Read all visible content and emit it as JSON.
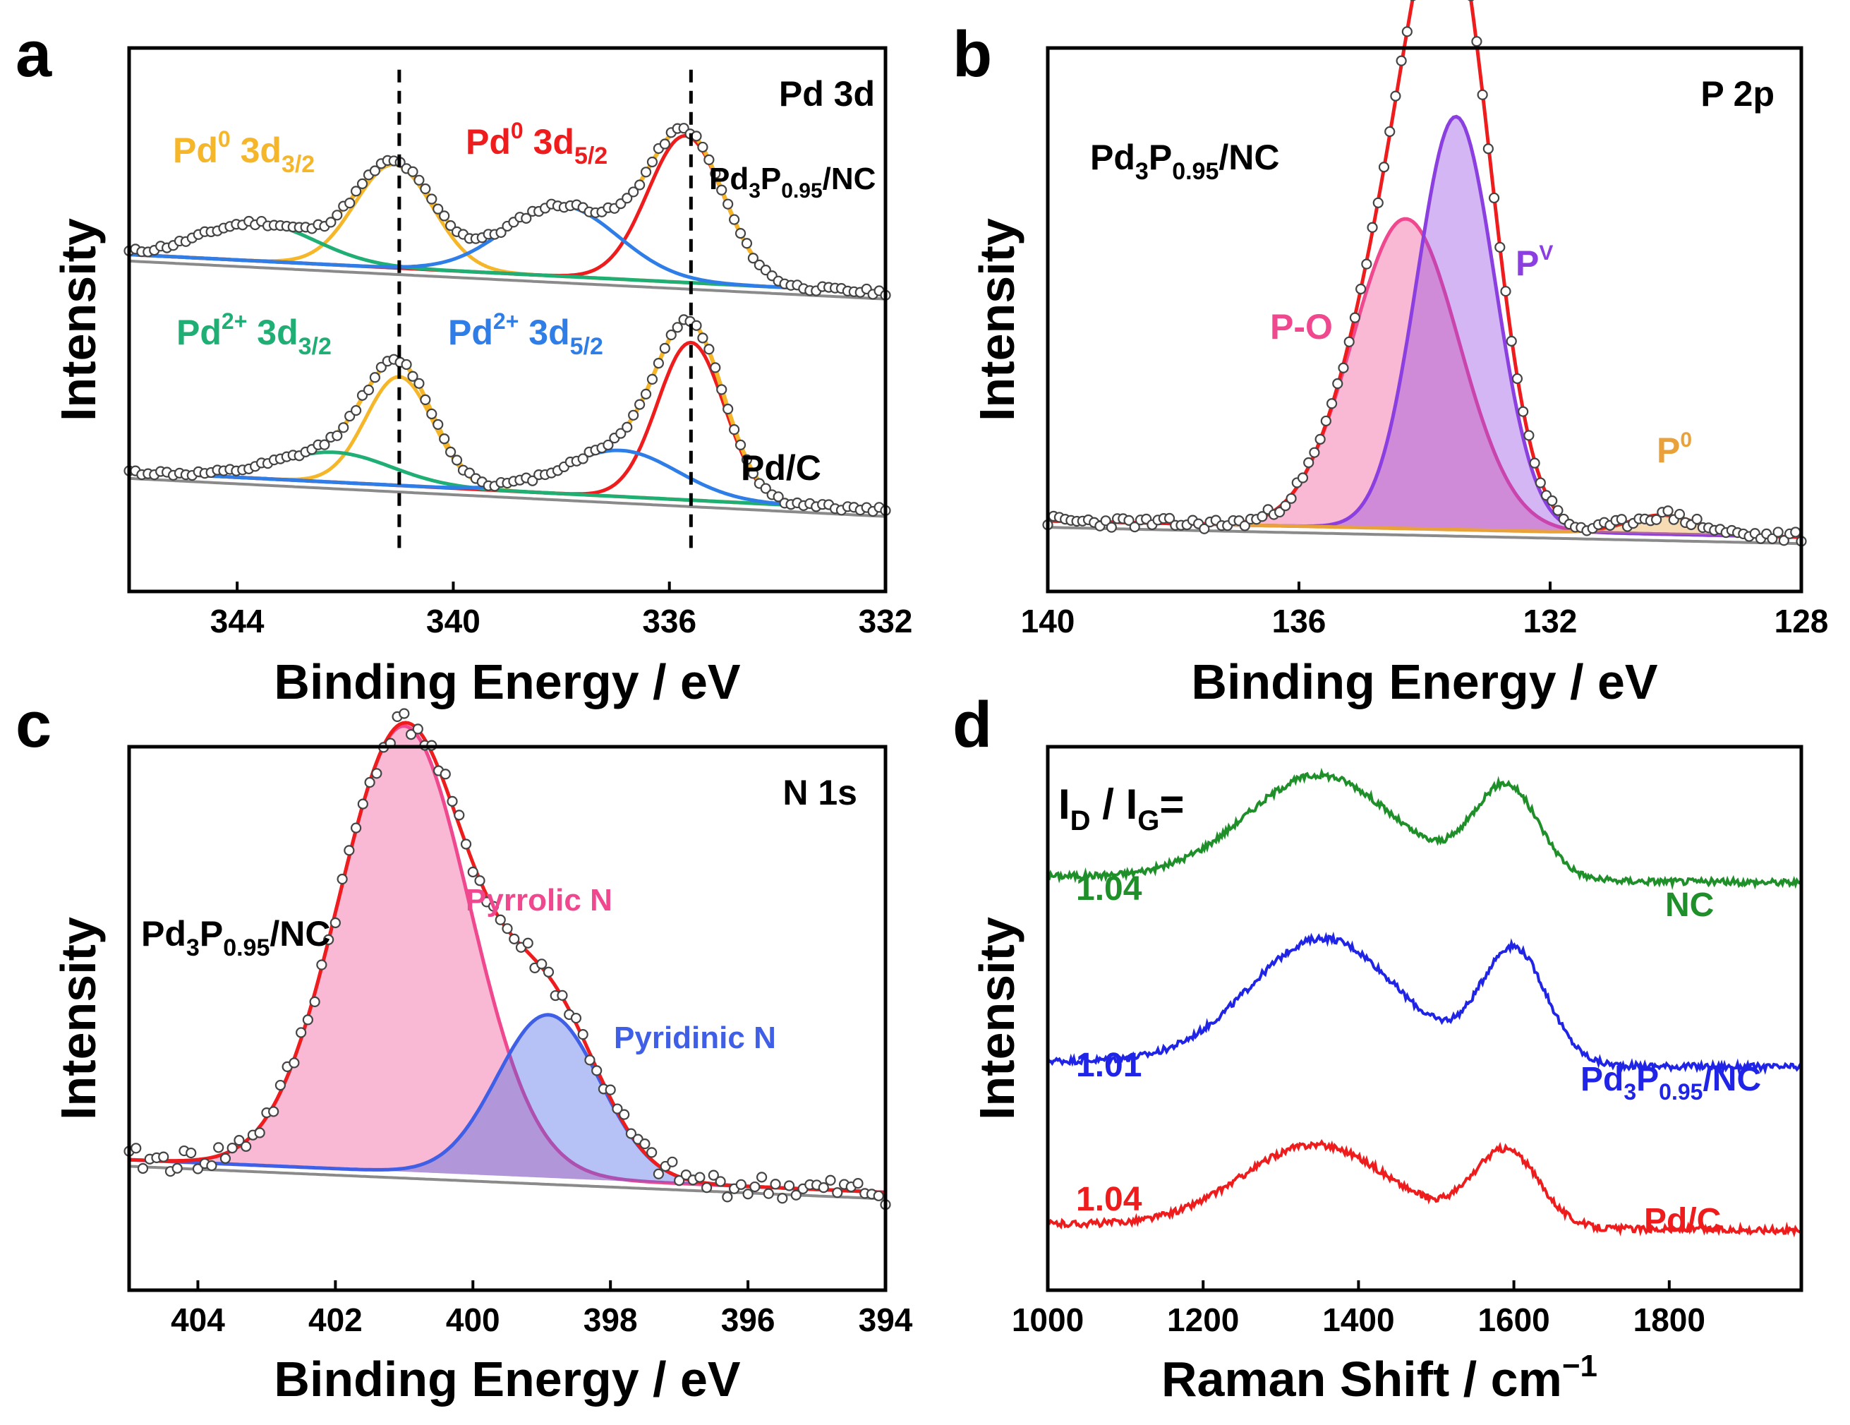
{
  "colors": {
    "pd0": "#f5b62a",
    "pd0_52": "#ee1c1c",
    "pd2": "#1fae74",
    "pd2_52": "#2f7ee8",
    "po": "#f0488f",
    "pv": "#8b3fe0",
    "p0": "#e9a13c",
    "pyrrolic": "#f0488f",
    "pyridinic": "#3f5fe6",
    "envelope": "#ee1c1c",
    "background": "#8a8a8a",
    "nc": "#1f8f2a",
    "pdp": "#1f24e6",
    "pdc": "#ee1c1c"
  },
  "chart_data": [
    {
      "panel": "a",
      "type": "line",
      "title": "Pd 3d",
      "xlabel": "Binding Energy / eV",
      "ylabel": "Intensity",
      "xlim": [
        346,
        332
      ],
      "xticks": [
        344,
        340,
        336,
        332
      ],
      "dashed_lines": [
        341.0,
        335.6
      ],
      "samples": [
        {
          "name": "Pd3P0.95/NC",
          "label_base": "Pd",
          "label_sub1": "3",
          "label_mid": "P",
          "label_sub2": "0.95",
          "label_tail": "/NC",
          "baseline": [
            0.62,
            0.55
          ],
          "components": [
            {
              "name": "Pd0 3d3/2",
              "center": 341.1,
              "width": 0.72,
              "height": 0.19,
              "color_key": "pd0"
            },
            {
              "name": "Pd0 3d5/2",
              "center": 335.7,
              "width": 0.7,
              "height": 0.27,
              "color_key": "pd0_52"
            },
            {
              "name": "Pd2+ 3d3/2",
              "center": 343.6,
              "width": 1.05,
              "height": 0.07,
              "color_key": "pd2"
            },
            {
              "name": "Pd2+ 3d5/2",
              "center": 338.0,
              "width": 1.05,
              "height": 0.13,
              "color_key": "pd2_52"
            }
          ]
        },
        {
          "name": "Pd/C",
          "baseline": [
            0.22,
            0.15
          ],
          "components": [
            {
              "name": "Pd0 3d3/2",
              "center": 341.0,
              "width": 0.62,
              "height": 0.2,
              "color_key": "pd0"
            },
            {
              "name": "Pd0 3d5/2",
              "center": 335.6,
              "width": 0.62,
              "height": 0.29,
              "color_key": "pd0_52"
            },
            {
              "name": "Pd2+ 3d3/2",
              "center": 342.2,
              "width": 1.05,
              "height": 0.055,
              "color_key": "pd2"
            },
            {
              "name": "Pd2+ 3d5/2",
              "center": 336.9,
              "width": 1.05,
              "height": 0.085,
              "color_key": "pd2_52"
            }
          ]
        }
      ],
      "labels": {
        "pd0_32": {
          "base": "Pd",
          "sup": "0",
          "mid": " 3d",
          "sub": "3/2"
        },
        "pd0_52": {
          "base": "Pd",
          "sup": "0",
          "mid": " 3d",
          "sub": "5/2"
        },
        "pd2_32": {
          "base": "Pd",
          "sup": "2+",
          "mid": " 3d",
          "sub": "3/2"
        },
        "pd2_52": {
          "base": "Pd",
          "sup": "2+",
          "mid": " 3d",
          "sub": "5/2"
        },
        "pdc": "Pd/C"
      }
    },
    {
      "panel": "b",
      "type": "area",
      "title": "P 2p",
      "sample": {
        "base": "Pd",
        "sub1": "3",
        "mid": "P",
        "sub2": "0.95",
        "tail": "/NC"
      },
      "xlabel": "Binding Energy / eV",
      "ylabel": "Intensity",
      "xlim": [
        140,
        128
      ],
      "xticks": [
        140,
        136,
        132,
        128
      ],
      "baseline": [
        0.13,
        0.1
      ],
      "components": [
        {
          "name": "P-O",
          "center": 134.3,
          "width": 0.85,
          "height": 0.57,
          "color_key": "po"
        },
        {
          "name": "Pv",
          "center": 133.5,
          "width": 0.62,
          "height": 0.76,
          "color_key": "pv"
        },
        {
          "name": "P0",
          "center": 130.2,
          "width": 0.55,
          "height": 0.035,
          "color_key": "p0"
        }
      ],
      "labels": {
        "po": "P-O",
        "pv_base": "P",
        "pv_sup": "V",
        "p0_base": "P",
        "p0_sup": "0"
      }
    },
    {
      "panel": "c",
      "type": "area",
      "title": "N 1s",
      "sample": {
        "base": "Pd",
        "sub1": "3",
        "mid": "P",
        "sub2": "0.95",
        "tail": "/NC"
      },
      "xlabel": "Binding Energy / eV",
      "ylabel": "Intensity",
      "xlim": [
        405,
        394
      ],
      "xticks": [
        404,
        402,
        400,
        398,
        396,
        394
      ],
      "baseline": [
        0.24,
        0.18
      ],
      "components": [
        {
          "name": "Pyrrolic N",
          "center": 401.0,
          "width": 0.95,
          "height": 0.82,
          "color_key": "pyrrolic"
        },
        {
          "name": "Pyridinic N",
          "center": 398.9,
          "width": 0.75,
          "height": 0.3,
          "color_key": "pyridinic"
        }
      ],
      "labels": {
        "pyrrolic": "Pyrrolic N",
        "pyridinic": "Pyridinic N"
      }
    },
    {
      "panel": "d",
      "type": "line",
      "title": "",
      "ratio_label": {
        "i1": "I",
        "s1": "D",
        "sep": " / I",
        "s2": "G",
        "tail": "="
      },
      "xlabel": "Raman Shift / cm",
      "xlabel_sup": "−1",
      "ylabel": "Intensity",
      "xlim": [
        1000,
        1970
      ],
      "xticks": [
        1000,
        1200,
        1400,
        1600,
        1800
      ],
      "series": [
        {
          "name": "NC",
          "ratio": "1.04",
          "color_key": "nc",
          "offset": 0.75,
          "d_center": 1350,
          "d_height": 0.19,
          "g_center": 1590,
          "g_height": 0.17
        },
        {
          "name": "Pd3P0.95/NC",
          "ratio": "1.01",
          "color_key": "pdp",
          "offset": 0.41,
          "d_center": 1355,
          "d_height": 0.23,
          "g_center": 1600,
          "g_height": 0.21
        },
        {
          "name": "Pd/C",
          "ratio": "1.04",
          "color_key": "pdc",
          "offset": 0.11,
          "d_center": 1345,
          "d_height": 0.15,
          "g_center": 1590,
          "g_height": 0.14
        }
      ],
      "labels": {
        "nc": "NC",
        "pdc": "Pd/C",
        "pdp": {
          "base": "Pd",
          "sub1": "3",
          "mid": "P",
          "sub2": "0.95",
          "tail": "/NC"
        }
      }
    }
  ],
  "panel_letters": [
    "a",
    "b",
    "c",
    "d"
  ]
}
